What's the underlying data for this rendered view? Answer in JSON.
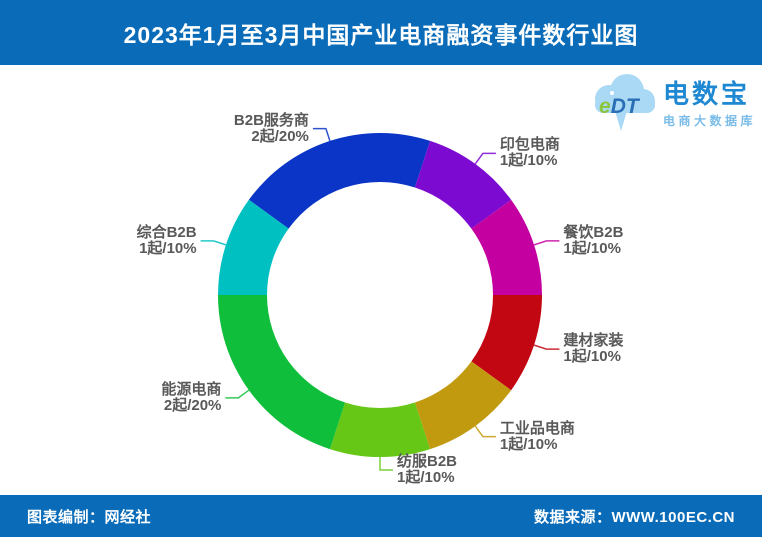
{
  "header": {
    "title": "2023年1月至3月中国产业电商融资事件数行业图",
    "bg_color": "#0a6cb8",
    "text_color": "#ffffff"
  },
  "logo": {
    "cloud_text_accent": "e",
    "cloud_text_rest": "DT",
    "name": "电数宝",
    "subtitle": "电商大数据库"
  },
  "footer": {
    "left": "图表编制：网经社",
    "right": "数据来源：WWW.100EC.CN"
  },
  "chart_data": {
    "type": "pie",
    "subtype": "donut",
    "title": "2023年1月至3月中国产业电商融资事件数行业图",
    "unit": "起",
    "legend_position": "none",
    "start_angle_deg_clockwise_from_top": -54,
    "inner_radius_ratio": 0.7,
    "label_text_color": "#595959",
    "series": [
      {
        "name": "B2B服务商",
        "events": 2,
        "percent": 20,
        "label": "2起/20%",
        "color": "#0b35c7"
      },
      {
        "name": "印包电商",
        "events": 1,
        "percent": 10,
        "label": "1起/10%",
        "color": "#7d0ad1"
      },
      {
        "name": "餐饮B2B",
        "events": 1,
        "percent": 10,
        "label": "1起/10%",
        "color": "#c400a1"
      },
      {
        "name": "建材家装",
        "events": 1,
        "percent": 10,
        "label": "1起/10%",
        "color": "#c20713"
      },
      {
        "name": "工业品电商",
        "events": 1,
        "percent": 10,
        "label": "1起/10%",
        "color": "#c29a10"
      },
      {
        "name": "纺服B2B",
        "events": 1,
        "percent": 10,
        "label": "1起/10%",
        "color": "#66c716"
      },
      {
        "name": "能源电商",
        "events": 2,
        "percent": 20,
        "label": "2起/20%",
        "color": "#0fbe3a"
      },
      {
        "name": "综合B2B",
        "events": 1,
        "percent": 10,
        "label": "1起/10%",
        "color": "#00c0c1"
      }
    ]
  }
}
